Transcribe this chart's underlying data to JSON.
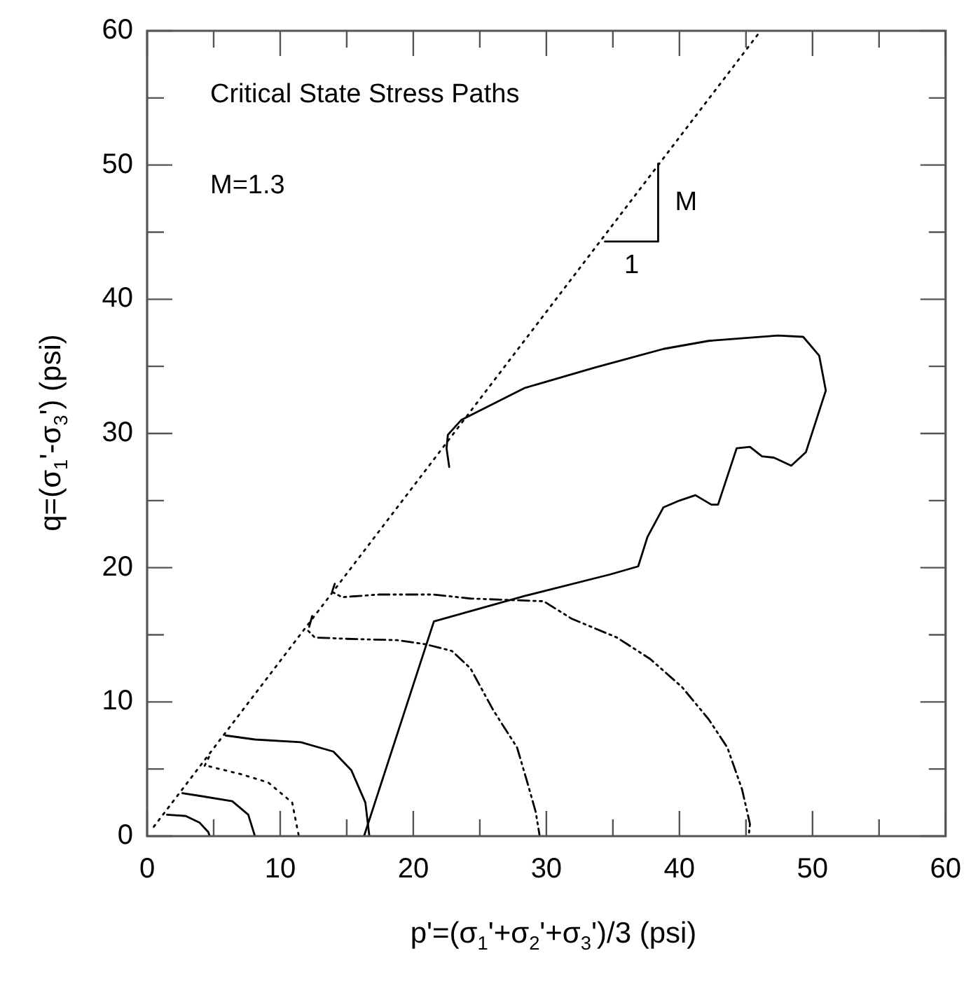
{
  "chart_data": {
    "type": "line",
    "title": "Critical State Stress Paths",
    "xlabel": "p'=(σ$_{1}$'+σ$_{2}$'+σ$_{3}$')/3 (psi)",
    "ylabel": "q=(σ$_{1}$'-σ$_{3}$') (psi)",
    "annotations": [
      "M=1.3",
      {
        "text": "M",
        "x": 38.4,
        "y": 47.2
      },
      {
        "text": "1",
        "x": 36.4,
        "y": 44.3
      }
    ],
    "xlim": [
      0,
      60
    ],
    "ylim": [
      0,
      60
    ],
    "xticks": [
      0,
      {
        "value": 5,
        "label": null
      },
      10,
      {
        "value": 15,
        "label": null
      },
      20,
      {
        "value": 25,
        "label": null
      },
      30,
      {
        "value": 35,
        "label": null
      },
      40,
      {
        "value": 45,
        "label": null
      },
      50,
      {
        "value": 55,
        "label": null
      },
      60
    ],
    "yticks": [
      0,
      {
        "value": 5,
        "label": null
      },
      10,
      {
        "value": 15,
        "label": null
      },
      20,
      {
        "value": 25,
        "label": null
      },
      30,
      {
        "value": 35,
        "label": null
      },
      40,
      {
        "value": 45,
        "label": null
      },
      50,
      {
        "value": 55,
        "label": null
      },
      60
    ],
    "grid": false,
    "legend": false,
    "marker": "none",
    "series": [
      {
        "color": "#000000",
        "line_style": "dotted",
        "x": [
          0.5,
          46.1
        ],
        "values": [
          0.7,
          60
        ]
      },
      {
        "color": "#000000",
        "line_style": "solid",
        "x": [
          34.4,
          38.4,
          38.4
        ],
        "values": [
          44.3,
          44.3,
          50.1
        ]
      },
      {
        "color": "#000000",
        "line_style": "solid",
        "x": [
          1.5,
          2.9,
          3.95,
          4.6,
          4.7
        ],
        "values": [
          1.6,
          1.5,
          1.0,
          0.3,
          0
        ]
      },
      {
        "color": "#000000",
        "line_style": "solid",
        "x": [
          2.65,
          3.95,
          6.4,
          7.6,
          8.1
        ],
        "values": [
          3.2,
          3.0,
          2.6,
          1.6,
          0
        ]
      },
      {
        "color": "#000000",
        "line_style": "dotted",
        "x": [
          4.65,
          4.3,
          4.65,
          7.1,
          9.1,
          10.9,
          11.4
        ],
        "values": [
          5.9,
          5.2,
          5.2,
          4.6,
          4.0,
          2.5,
          0
        ]
      },
      {
        "color": "#000000",
        "line_style": "solid",
        "x": [
          5.9,
          8.1,
          11.55,
          14.0,
          15.35,
          16.4,
          16.7
        ],
        "values": [
          7.5,
          7.2,
          7.0,
          6.3,
          4.9,
          2.5,
          0
        ]
      },
      {
        "color": "#000000",
        "line_style": "dashed",
        "x": [
          12.4,
          12.1,
          12.6,
          15.0,
          18.8,
          20.9,
          22.9,
          24.3,
          26.0,
          27.8,
          28.6,
          29.2,
          29.5
        ],
        "values": [
          16.4,
          15.3,
          14.8,
          14.7,
          14.6,
          14.3,
          13.8,
          12.5,
          9.4,
          6.6,
          3.9,
          1.8,
          0
        ]
      },
      {
        "color": "#000000",
        "line_style": "dashed",
        "x": [
          14.1,
          13.9,
          14.65,
          17.4,
          21.55,
          24.3,
          27.1,
          29.8,
          31.9,
          35.3,
          37.8,
          40.2,
          42.2,
          43.6,
          44.7,
          45.3,
          45.2
        ],
        "values": [
          18.8,
          18.2,
          17.8,
          18.0,
          18.0,
          17.7,
          17.6,
          17.5,
          16.2,
          14.8,
          13.2,
          11.1,
          8.7,
          6.6,
          3.5,
          0.9,
          0
        ]
      },
      {
        "color": "#000000",
        "line_style": "solid",
        "x": [
          16.3,
          21.55,
          28.4,
          34.8,
          36.9,
          37.6,
          38.8,
          40.0,
          41.2,
          42.4,
          42.9,
          44.3,
          45.3,
          46.2,
          47.1,
          48.4,
          49.5,
          51.0,
          50.5,
          49.3,
          47.4,
          42.2,
          38.8,
          33.6,
          28.4,
          23.6,
          22.6,
          22.5,
          22.7
        ],
        "values": [
          0,
          16.0,
          17.9,
          19.5,
          20.1,
          22.3,
          24.5,
          25.0,
          25.4,
          24.7,
          24.7,
          28.9,
          29.0,
          28.3,
          28.2,
          27.6,
          28.6,
          33.2,
          35.8,
          37.2,
          37.3,
          36.9,
          36.3,
          34.9,
          33.4,
          31.0,
          29.9,
          28.9,
          27.5
        ]
      }
    ]
  }
}
